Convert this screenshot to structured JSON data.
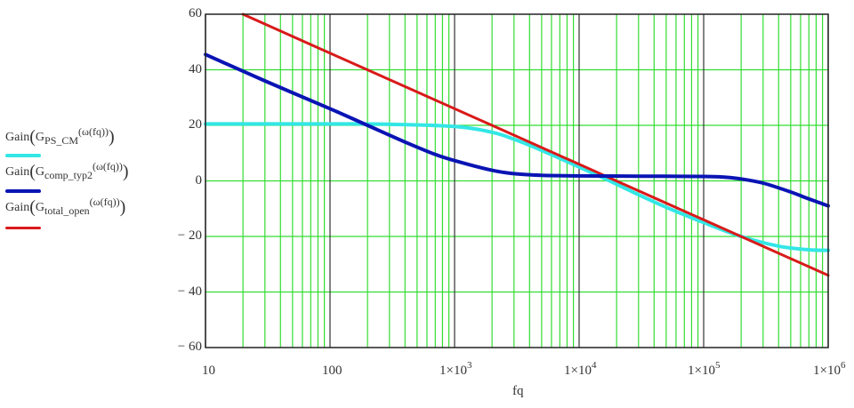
{
  "chart_data": {
    "type": "line",
    "title": "",
    "xlabel": "fq",
    "ylabel": "",
    "xscale": "log",
    "xlim": [
      10,
      1000000
    ],
    "ylim": [
      -60,
      60
    ],
    "grid": true,
    "legend_position": "left",
    "x_tick_labels": [
      "10",
      "100",
      "1×10^3",
      "1×10^4",
      "1×10^5",
      "1×10^6"
    ],
    "x_ticks": [
      10,
      100,
      1000,
      10000,
      100000,
      1000000
    ],
    "y_tick_labels": [
      "60",
      "40",
      "20",
      "0",
      "− 20",
      "− 40",
      "− 60"
    ],
    "y_ticks": [
      60,
      40,
      20,
      0,
      -20,
      -40,
      -60
    ],
    "series": [
      {
        "name": "Gain(G_PS_CM(ω(fq)))",
        "color": "#33e6e6",
        "x": [
          10,
          100,
          300,
          1000,
          2000,
          3000,
          5000,
          10000,
          17000,
          30000,
          50000,
          100000,
          200000,
          400000,
          700000,
          1000000
        ],
        "values": [
          20.5,
          20.5,
          20.4,
          19.6,
          17.5,
          15.0,
          11.0,
          5.0,
          0.3,
          -5.0,
          -9.5,
          -15.0,
          -20.0,
          -23.5,
          -24.8,
          -25.0
        ]
      },
      {
        "name": "Gain(G_comp_typ2(ω(fq)))",
        "color": "#0a14b4",
        "x": [
          10,
          30,
          100,
          200,
          400,
          700,
          1000,
          2000,
          3000,
          5000,
          10000,
          30000,
          100000,
          150000,
          200000,
          300000,
          500000,
          700000,
          1000000
        ],
        "values": [
          45.5,
          36.0,
          26.0,
          20.0,
          14.0,
          9.5,
          7.3,
          3.8,
          2.6,
          2.0,
          1.8,
          1.7,
          1.6,
          1.3,
          0.7,
          -0.8,
          -4.0,
          -6.5,
          -9.0
        ]
      },
      {
        "name": "Gain(G_total_open(ω(fq)))",
        "color": "#d91a1a",
        "x": [
          20,
          100,
          1000,
          10000,
          16000,
          100000,
          1000000
        ],
        "values": [
          60,
          46,
          26,
          6,
          1.9,
          -14,
          -34
        ]
      }
    ]
  },
  "legend": [
    {
      "prefix": "Gain",
      "symbol": "G",
      "subscript": "PS_CM",
      "arg": "ω(fq)",
      "color": "#33e6e6"
    },
    {
      "prefix": "Gain",
      "symbol": "G",
      "subscript": "comp_typ2",
      "arg": "ω(fq)",
      "color": "#0a14b4"
    },
    {
      "prefix": "Gain",
      "symbol": "G",
      "subscript": "total_open",
      "arg": "ω(fq)",
      "color": "#d91a1a"
    }
  ],
  "axes": {
    "x_label": "fq",
    "x_ticks": [
      {
        "base": "10",
        "exp": ""
      },
      {
        "base": "100",
        "exp": ""
      },
      {
        "base": "1×10",
        "exp": "3"
      },
      {
        "base": "1×10",
        "exp": "4"
      },
      {
        "base": "1×10",
        "exp": "5"
      },
      {
        "base": "1×10",
        "exp": "6"
      }
    ],
    "y_ticks": [
      "60",
      "40",
      "20",
      "0",
      "− 20",
      "− 40",
      "− 60"
    ]
  },
  "colors": {
    "grid": "#33dd33",
    "axis": "#222222",
    "decade": "#333333"
  }
}
